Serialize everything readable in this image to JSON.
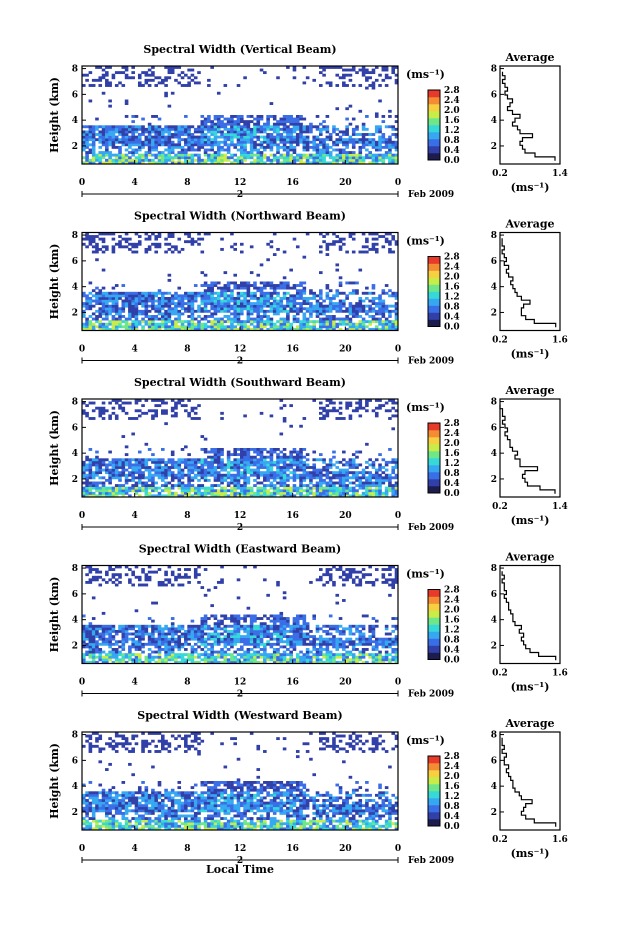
{
  "colors": {
    "scale": [
      "#1c1c4e",
      "#3040a8",
      "#3a6ee6",
      "#36a8f2",
      "#36d8d8",
      "#6ee68a",
      "#c8ec48",
      "#f6d040",
      "#f48c34",
      "#e83a2a"
    ],
    "line": "#000000",
    "background": "#ffffff"
  },
  "figure": {
    "date_label": "Feb 2009",
    "xlabel": "Local Time",
    "day_marker": "2",
    "average_title": "Average",
    "unit_label": "(ms⁻¹)"
  },
  "chart_data": [
    {
      "type": "heatmap",
      "title": "Spectral Width (Vertical Beam)",
      "ylabel": "Height (km)",
      "xlabel": "",
      "x_ticks": [
        "0",
        "4",
        "8",
        "12",
        "16",
        "20",
        "0"
      ],
      "xlim": [
        0,
        24
      ],
      "y_ticks": [
        "2",
        "4",
        "6",
        "8"
      ],
      "ylim": [
        0.6,
        8.2
      ],
      "colorbar_label": "(ms⁻¹)",
      "colorbar_ticks": [
        "0.0",
        "0.4",
        "0.8",
        "1.2",
        "1.6",
        "2.0",
        "2.4",
        "2.8"
      ],
      "colorbar_range": [
        0.0,
        2.8
      ],
      "average": {
        "title": "Average",
        "xlabel": "(ms⁻¹)",
        "x_ticks": [
          "0.2",
          "1.4"
        ],
        "xlim": [
          0.2,
          1.4
        ],
        "y_ticks": [
          "2",
          "4",
          "6",
          "8"
        ],
        "ylim": [
          0.6,
          8.2
        ],
        "heights": [
          1.0,
          1.3,
          1.6,
          1.9,
          2.2,
          2.5,
          2.8,
          3.1,
          3.4,
          3.7,
          4.0,
          4.3,
          4.6,
          4.9,
          5.2,
          5.5,
          5.8,
          6.1,
          6.4,
          6.7,
          7.0,
          7.3,
          7.6
        ],
        "values": [
          1.3,
          0.9,
          0.7,
          0.65,
          0.6,
          0.65,
          0.85,
          0.6,
          0.55,
          0.45,
          0.5,
          0.6,
          0.45,
          0.35,
          0.4,
          0.45,
          0.35,
          0.3,
          0.35,
          0.3,
          0.25,
          0.3,
          0.25
        ]
      }
    },
    {
      "type": "heatmap",
      "title": "Spectral Width (Northward Beam)",
      "ylabel": "Height (km)",
      "xlabel": "",
      "x_ticks": [
        "0",
        "4",
        "8",
        "12",
        "16",
        "20",
        "0"
      ],
      "xlim": [
        0,
        24
      ],
      "y_ticks": [
        "2",
        "4",
        "6",
        "8"
      ],
      "ylim": [
        0.6,
        8.2
      ],
      "colorbar_label": "(ms⁻¹)",
      "colorbar_ticks": [
        "0.0",
        "0.4",
        "0.8",
        "1.2",
        "1.6",
        "2.0",
        "2.4",
        "2.8"
      ],
      "colorbar_range": [
        0.0,
        2.8
      ],
      "average": {
        "title": "Average",
        "xlabel": "(ms⁻¹)",
        "x_ticks": [
          "0.2",
          "1.6"
        ],
        "xlim": [
          0.2,
          1.6
        ],
        "y_ticks": [
          "2",
          "4",
          "6",
          "8"
        ],
        "ylim": [
          0.6,
          8.2
        ],
        "heights": [
          1.0,
          1.3,
          1.6,
          1.9,
          2.2,
          2.5,
          2.8,
          3.1,
          3.4,
          3.7,
          4.0,
          4.3,
          4.6,
          4.9,
          5.2,
          5.5,
          5.8,
          6.1,
          6.4,
          6.7,
          7.0,
          7.3,
          7.6
        ],
        "values": [
          1.5,
          1.0,
          0.8,
          0.7,
          0.7,
          0.75,
          0.9,
          0.7,
          0.6,
          0.55,
          0.5,
          0.45,
          0.5,
          0.4,
          0.35,
          0.4,
          0.3,
          0.35,
          0.3,
          0.25,
          0.3,
          0.25,
          0.25
        ]
      }
    },
    {
      "type": "heatmap",
      "title": "Spectral Width (Southward Beam)",
      "ylabel": "Height (km)",
      "xlabel": "",
      "x_ticks": [
        "0",
        "4",
        "8",
        "12",
        "16",
        "20",
        "0"
      ],
      "xlim": [
        0,
        24
      ],
      "y_ticks": [
        "2",
        "4",
        "6",
        "8"
      ],
      "ylim": [
        0.6,
        8.2
      ],
      "colorbar_label": "(ms⁻¹)",
      "colorbar_ticks": [
        "0.0",
        "0.4",
        "0.8",
        "1.2",
        "1.6",
        "2.0",
        "2.4",
        "2.8"
      ],
      "colorbar_range": [
        0.0,
        2.8
      ],
      "average": {
        "title": "Average",
        "xlabel": "(ms⁻¹)",
        "x_ticks": [
          "0.2",
          "1.4"
        ],
        "xlim": [
          0.2,
          1.4
        ],
        "y_ticks": [
          "2",
          "4",
          "6",
          "8"
        ],
        "ylim": [
          0.6,
          8.2
        ],
        "heights": [
          1.0,
          1.3,
          1.6,
          1.9,
          2.2,
          2.5,
          2.8,
          3.1,
          3.4,
          3.7,
          4.0,
          4.3,
          4.6,
          4.9,
          5.2,
          5.5,
          5.8,
          6.1,
          6.4,
          6.7,
          7.0,
          7.3,
          7.6
        ],
        "values": [
          1.3,
          1.0,
          0.75,
          0.7,
          0.65,
          0.7,
          0.95,
          0.6,
          0.6,
          0.5,
          0.55,
          0.45,
          0.4,
          0.4,
          0.35,
          0.3,
          0.35,
          0.3,
          0.25,
          0.3,
          0.25,
          0.25,
          0.2
        ]
      }
    },
    {
      "type": "heatmap",
      "title": "Spectral Width (Eastward Beam)",
      "ylabel": "Height (km)",
      "xlabel": "",
      "x_ticks": [
        "0",
        "4",
        "8",
        "12",
        "16",
        "20",
        "0"
      ],
      "xlim": [
        0,
        24
      ],
      "y_ticks": [
        "2",
        "4",
        "6",
        "8"
      ],
      "ylim": [
        0.6,
        8.2
      ],
      "colorbar_label": "(ms⁻¹)",
      "colorbar_ticks": [
        "0.0",
        "0.4",
        "0.8",
        "1.2",
        "1.6",
        "2.0",
        "2.4",
        "2.8"
      ],
      "colorbar_range": [
        0.0,
        2.8
      ],
      "average": {
        "title": "Average",
        "xlabel": "(ms⁻¹)",
        "x_ticks": [
          "0.2",
          "1.6"
        ],
        "xlim": [
          0.2,
          1.6
        ],
        "y_ticks": [
          "2",
          "4",
          "6",
          "8"
        ],
        "ylim": [
          0.6,
          8.2
        ],
        "heights": [
          1.0,
          1.3,
          1.6,
          1.9,
          2.2,
          2.5,
          2.8,
          3.1,
          3.4,
          3.7,
          4.0,
          4.3,
          4.6,
          4.9,
          5.2,
          5.5,
          5.8,
          6.1,
          6.4,
          6.7,
          7.0,
          7.3,
          7.6
        ],
        "values": [
          1.5,
          1.1,
          0.9,
          0.8,
          0.75,
          0.7,
          0.75,
          0.65,
          0.7,
          0.55,
          0.5,
          0.5,
          0.45,
          0.4,
          0.4,
          0.35,
          0.3,
          0.35,
          0.3,
          0.3,
          0.25,
          0.3,
          0.25
        ]
      }
    },
    {
      "type": "heatmap",
      "title": "Spectral Width (Westward Beam)",
      "ylabel": "Height (km)",
      "xlabel": "Local Time",
      "x_ticks": [
        "0",
        "4",
        "8",
        "12",
        "16",
        "20",
        "0"
      ],
      "xlim": [
        0,
        24
      ],
      "y_ticks": [
        "2",
        "4",
        "6",
        "8"
      ],
      "ylim": [
        0.6,
        8.2
      ],
      "colorbar_label": "(ms⁻¹)",
      "colorbar_ticks": [
        "0.0",
        "0.4",
        "0.8",
        "1.2",
        "1.6",
        "2.0",
        "2.4",
        "2.8"
      ],
      "colorbar_range": [
        0.0,
        2.8
      ],
      "average": {
        "title": "Average",
        "xlabel": "(ms⁻¹)",
        "x_ticks": [
          "0.2",
          "1.6"
        ],
        "xlim": [
          0.2,
          1.6
        ],
        "y_ticks": [
          "2",
          "4",
          "6",
          "8"
        ],
        "ylim": [
          0.6,
          8.2
        ],
        "heights": [
          1.0,
          1.3,
          1.6,
          1.9,
          2.2,
          2.5,
          2.8,
          3.1,
          3.4,
          3.7,
          4.0,
          4.3,
          4.6,
          4.9,
          5.2,
          5.5,
          5.8,
          6.1,
          6.4,
          6.7,
          7.0,
          7.3,
          7.6
        ],
        "values": [
          1.5,
          1.0,
          0.8,
          0.7,
          0.75,
          0.8,
          0.95,
          0.7,
          0.65,
          0.55,
          0.5,
          0.5,
          0.45,
          0.4,
          0.35,
          0.4,
          0.3,
          0.3,
          0.35,
          0.25,
          0.3,
          0.25,
          0.25
        ]
      }
    }
  ]
}
